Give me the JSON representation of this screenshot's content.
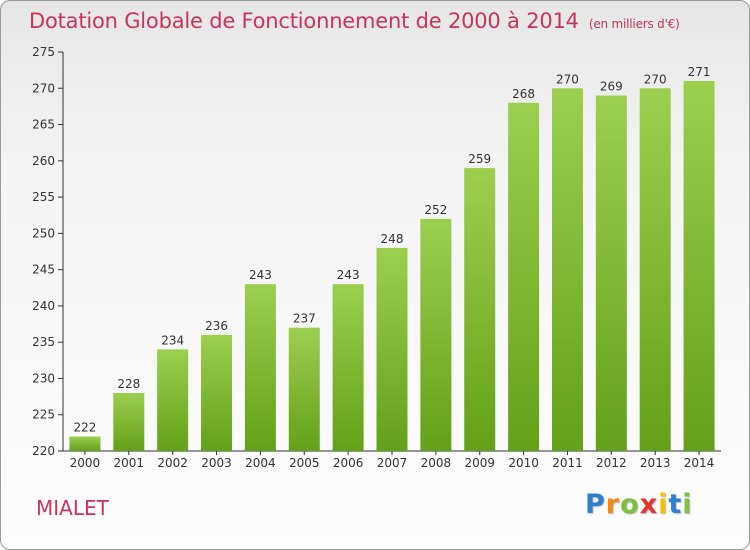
{
  "chart_data": {
    "type": "bar",
    "title": "Dotation Globale de Fonctionnement de 2000 à 2014",
    "unit_note": "(en milliers d'€)",
    "categories": [
      "2000",
      "2001",
      "2002",
      "2003",
      "2004",
      "2005",
      "2006",
      "2007",
      "2008",
      "2009",
      "2010",
      "2011",
      "2012",
      "2013",
      "2014"
    ],
    "values": [
      222,
      228,
      234,
      236,
      243,
      237,
      243,
      248,
      252,
      259,
      268,
      270,
      269,
      270,
      271
    ],
    "ylim": [
      220,
      275
    ],
    "yticks": [
      220,
      225,
      230,
      235,
      240,
      245,
      250,
      255,
      260,
      265,
      270,
      275
    ],
    "xlabel": "",
    "ylabel": "",
    "grid": false,
    "legend": "none",
    "bar_color_top": "#9ccf4f",
    "bar_color_bottom": "#64a019"
  },
  "commune": "MIALET",
  "logo": {
    "letters": [
      "P",
      "r",
      "o",
      "x",
      "i",
      "t",
      "i"
    ],
    "colors": [
      "#2f7fd0",
      "#f08a1a",
      "#7fc043",
      "#e83030",
      "#f2c200",
      "#2f7fd0",
      "#7fc043"
    ]
  },
  "colors": {
    "accent": "#c8345a",
    "axis": "#333333"
  }
}
